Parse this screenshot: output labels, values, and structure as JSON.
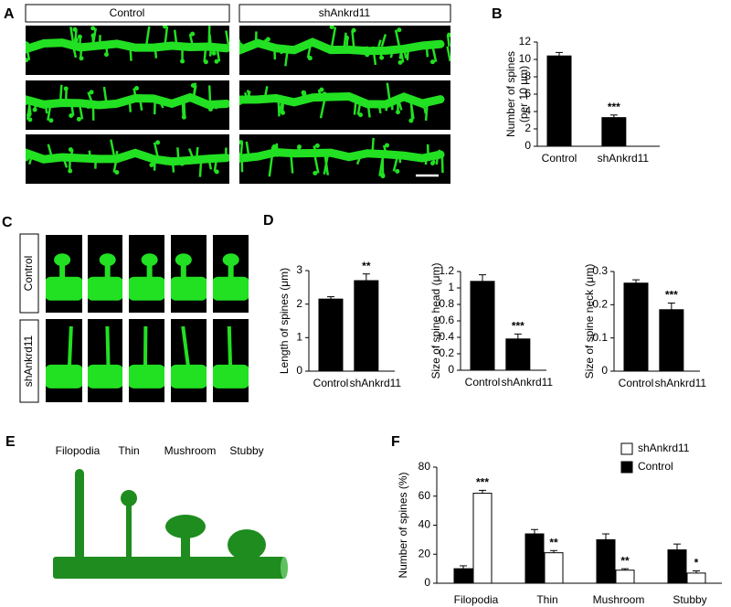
{
  "panels": {
    "A": {
      "letter": "A",
      "conditions": [
        "Control",
        "shAnkrd11"
      ]
    },
    "C": {
      "letter": "C",
      "conditions": [
        "Control",
        "shAnkrd11"
      ]
    },
    "E": {
      "letter": "E",
      "labels": [
        "Filopodia",
        "Thin",
        "Mushroom",
        "Stubby"
      ]
    }
  },
  "chart_data": [
    {
      "type": "bar",
      "panel": "B",
      "ylabel": [
        "Number of spines",
        "(per 10 μm)"
      ],
      "categories": [
        "Control",
        "shAnkrd11"
      ],
      "values": [
        10.4,
        3.3
      ],
      "errors": [
        0.4,
        0.3
      ],
      "value_annotations": [
        null,
        "***"
      ],
      "color": "#000000",
      "ylim": [
        0,
        12
      ],
      "yticks": [
        0,
        2,
        4,
        6,
        8,
        10,
        12
      ]
    },
    {
      "type": "bar",
      "panel": "D",
      "ylabel": "Length of spines (μm)",
      "categories": [
        "Control",
        "shAnkrd11"
      ],
      "values": [
        2.15,
        2.7
      ],
      "errors": [
        0.07,
        0.2
      ],
      "value_annotations": [
        null,
        "**"
      ],
      "color": "#000000",
      "ylim": [
        0,
        3
      ],
      "yticks": [
        0,
        1,
        2,
        3
      ]
    },
    {
      "type": "bar",
      "ylabel": "Size of spine head (μm)",
      "categories": [
        "Control",
        "shAnkrd11"
      ],
      "values": [
        1.08,
        0.38
      ],
      "errors": [
        0.08,
        0.06
      ],
      "value_annotations": [
        null,
        "***"
      ],
      "color": "#000000",
      "ylim": [
        0,
        1.2
      ],
      "yticks": [
        0,
        0.2,
        0.4,
        0.6,
        0.8,
        1,
        1.2
      ]
    },
    {
      "type": "bar",
      "ylabel": "Size of spine neck (μm)",
      "categories": [
        "Control",
        "shAnkrd11"
      ],
      "values": [
        0.265,
        0.185
      ],
      "errors": [
        0.01,
        0.02
      ],
      "value_annotations": [
        null,
        "***"
      ],
      "color": "#000000",
      "ylim": [
        0,
        0.3
      ],
      "yticks": [
        0,
        0.1,
        0.2,
        0.3
      ]
    },
    {
      "type": "grouped-bar",
      "panel": "F",
      "ylabel": "Number of spines (%)",
      "categories": [
        "Filopodia",
        "Thin",
        "Mushroom",
        "Stubby"
      ],
      "series": [
        {
          "name": "Control",
          "color": "#000000",
          "values": [
            10,
            34,
            30,
            23
          ],
          "errors": [
            2,
            3,
            4,
            4
          ],
          "value_annotations": [
            null,
            null,
            null,
            null
          ]
        },
        {
          "name": "shAnkrd11",
          "color": "#ffffff",
          "values": [
            62,
            21,
            9,
            7
          ],
          "errors": [
            2,
            1.5,
            1,
            1.5
          ],
          "value_annotations": [
            "***",
            "**",
            "**",
            "*"
          ]
        }
      ],
      "ylim": [
        0,
        80
      ],
      "yticks": [
        0,
        20,
        40,
        60,
        80
      ],
      "legend": "top-right"
    }
  ]
}
